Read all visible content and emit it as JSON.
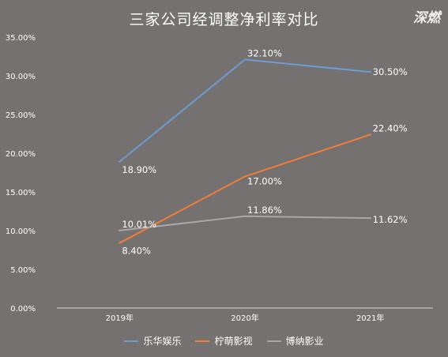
{
  "page": {
    "title": "三家公司经调整净利率对比",
    "watermark": "深燃"
  },
  "chart_data": {
    "type": "line",
    "title": "三家公司经调整净利率对比",
    "categories": [
      "2019年",
      "2020年",
      "2021年"
    ],
    "ylim": [
      0,
      35
    ],
    "yticks": [
      "0.00%",
      "5.00%",
      "10.00%",
      "15.00%",
      "20.00%",
      "25.00%",
      "30.00%",
      "35.00%"
    ],
    "grid": false,
    "legend_position": "bottom",
    "series": [
      {
        "name": "乐华娱乐",
        "color": "#6e9bd1",
        "values": [
          18.9,
          32.1,
          30.5
        ],
        "labels": [
          "18.90%",
          "32.10%",
          "30.50%"
        ]
      },
      {
        "name": "柠萌影视",
        "color": "#ef7e3a",
        "values": [
          8.4,
          17.0,
          22.4
        ],
        "labels": [
          "8.40%",
          "17.00%",
          "22.40%"
        ]
      },
      {
        "name": "博纳影业",
        "color": "#a9a8a7",
        "values": [
          10.01,
          11.86,
          11.62
        ],
        "labels": [
          "10.01%",
          "11.86%",
          "11.62%"
        ]
      }
    ]
  }
}
